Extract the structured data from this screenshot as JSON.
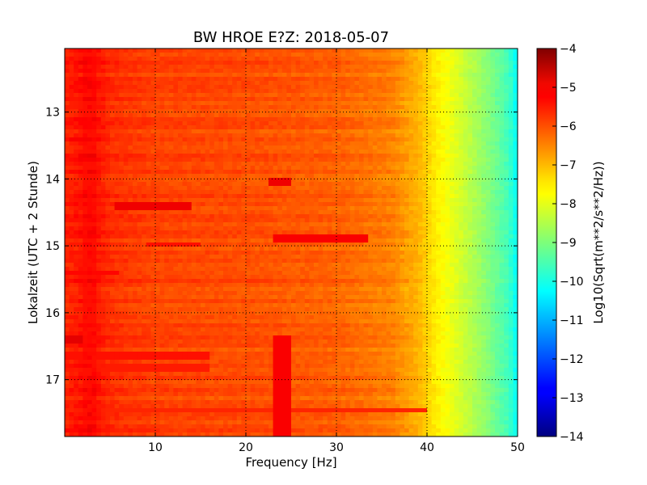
{
  "chart_data": {
    "type": "heatmap",
    "title": "BW HROE E?Z: 2018-05-07",
    "xlabel": "Frequency [Hz]",
    "ylabel": "Lokalzeit (UTC + 2 Stunde)",
    "xlim": [
      0,
      50
    ],
    "ylim": [
      12.05,
      17.85
    ],
    "y_inverted": true,
    "grid": true,
    "x_ticks": [
      {
        "value": 10,
        "label": "10"
      },
      {
        "value": 20,
        "label": "20"
      },
      {
        "value": 30,
        "label": "30"
      },
      {
        "value": 40,
        "label": "40"
      },
      {
        "value": 50,
        "label": "50"
      }
    ],
    "y_ticks": [
      {
        "value": 13,
        "label": "13"
      },
      {
        "value": 14,
        "label": "14"
      },
      {
        "value": 15,
        "label": "15"
      },
      {
        "value": 16,
        "label": "16"
      },
      {
        "value": 17,
        "label": "17"
      }
    ],
    "colorbar": {
      "label": "Log10(Sqrt(m**2/s**2/Hz))",
      "colormap": "jet",
      "range": [
        -14,
        -4
      ],
      "ticks": [
        {
          "value": -4,
          "label": "−4"
        },
        {
          "value": -5,
          "label": "−5"
        },
        {
          "value": -6,
          "label": "−6"
        },
        {
          "value": -7,
          "label": "−7"
        },
        {
          "value": -8,
          "label": "−8"
        },
        {
          "value": -9,
          "label": "−9"
        },
        {
          "value": -10,
          "label": "−10"
        },
        {
          "value": -11,
          "label": "−11"
        },
        {
          "value": -12,
          "label": "−12"
        },
        {
          "value": -13,
          "label": "−13"
        },
        {
          "value": -14,
          "label": "−14"
        }
      ]
    },
    "frequency_profile": [
      {
        "f": 0,
        "v": -5.6
      },
      {
        "f": 3,
        "v": -5.3
      },
      {
        "f": 5,
        "v": -5.7
      },
      {
        "f": 10,
        "v": -5.9
      },
      {
        "f": 20,
        "v": -6.0
      },
      {
        "f": 30,
        "v": -6.2
      },
      {
        "f": 36,
        "v": -6.5
      },
      {
        "f": 39,
        "v": -7.0
      },
      {
        "f": 41,
        "v": -7.6
      },
      {
        "f": 43,
        "v": -8.0
      },
      {
        "f": 45,
        "v": -8.5
      },
      {
        "f": 47,
        "v": -9.0
      },
      {
        "f": 49,
        "v": -9.6
      },
      {
        "f": 50,
        "v": -10.3
      }
    ],
    "features": [
      {
        "f_min": 23.0,
        "f_max": 25.0,
        "t_min": 16.4,
        "t_max": 17.85,
        "v": -5.2
      },
      {
        "f_min": 22.5,
        "f_max": 25.0,
        "t_min": 14.03,
        "t_max": 14.08,
        "v": -5.1
      },
      {
        "f_min": 23.0,
        "f_max": 33.5,
        "t_min": 14.87,
        "t_max": 14.91,
        "v": -5.2
      },
      {
        "f_min": 5.5,
        "f_max": 14.0,
        "t_min": 14.38,
        "t_max": 14.42,
        "v": -5.1
      },
      {
        "f_min": 0.0,
        "f_max": 2.0,
        "t_min": 16.37,
        "t_max": 16.42,
        "v": -5.0
      },
      {
        "f_min": 0.5,
        "f_max": 2.5,
        "t_min": 13.38,
        "t_max": 13.42,
        "v": -5.2
      },
      {
        "f_min": 2.0,
        "f_max": 3.5,
        "t_min": 12.05,
        "t_max": 17.85,
        "v": -5.4
      },
      {
        "f_min": 9.0,
        "f_max": 15.0,
        "t_min": 14.97,
        "t_max": 15.0,
        "v": -5.4
      },
      {
        "f_min": 0.0,
        "f_max": 6.0,
        "t_min": 15.39,
        "t_max": 15.42,
        "v": -5.3
      },
      {
        "f_min": 0.0,
        "f_max": 16.0,
        "t_min": 16.63,
        "t_max": 16.66,
        "v": -5.4
      },
      {
        "f_min": 0.0,
        "f_max": 16.0,
        "t_min": 16.82,
        "t_max": 16.85,
        "v": -5.5
      },
      {
        "f_min": 0.0,
        "f_max": 40.0,
        "t_min": 17.45,
        "t_max": 17.48,
        "v": -5.6
      }
    ]
  }
}
